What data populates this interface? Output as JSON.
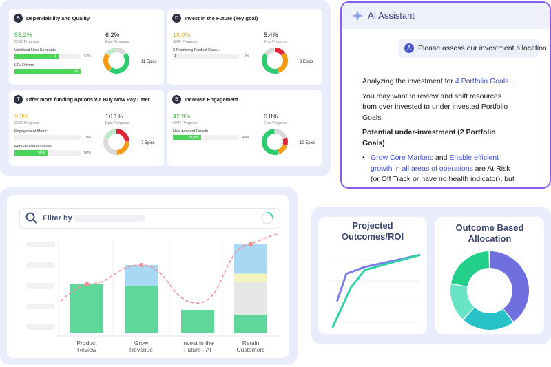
{
  "okr_cards": [
    {
      "badge": "B",
      "title": "Dependability and Quality",
      "okr_value": "55.2%",
      "okr_label": "OKR Progress",
      "okr_color": "#43b649",
      "epic_value": "6.2%",
      "epic_label": "Epic Progress",
      "epics": "11 Epics",
      "rows": [
        {
          "label": "Validated New Concepts",
          "bar_text": "1",
          "percent": 67,
          "percent_label": "67%"
        },
        {
          "label": "LTV Drivers",
          "bar_text": "79"
        }
      ],
      "donut": [
        {
          "value": 15,
          "color": "#d9d9d9"
        },
        {
          "value": 45,
          "color": "#2ecc71"
        },
        {
          "value": 25,
          "color": "#f39c12"
        },
        {
          "value": 15,
          "color": "#bfe8c9"
        }
      ]
    },
    {
      "badge": "D",
      "title": "Invest in the Future (key goal)",
      "okr_value": "18.0%",
      "okr_label": "OKR Progress",
      "okr_color": "#e6b422",
      "epic_value": "5.4%",
      "epic_label": "Epic Progress",
      "epics": "8 Epics",
      "rows": [
        {
          "label": "2 Promising Product Conc...",
          "bar_text": "1",
          "percent": 0,
          "percent_label": "0%"
        }
      ],
      "donut": [
        {
          "value": 15,
          "color": "#e0243a"
        },
        {
          "value": 30,
          "color": "#f39c12"
        },
        {
          "value": 40,
          "color": "#2ecc71"
        },
        {
          "value": 15,
          "color": "#d9d9d9"
        }
      ]
    },
    {
      "badge": "T",
      "title": "Offer more funding options via Buy Now Pay Later",
      "okr_value": "9.3%",
      "okr_label": "OKR Progress",
      "okr_color": "#e6b422",
      "epic_value": "10.1%",
      "epic_label": "Epic Progress",
      "epics": "7 Epics",
      "rows": [
        {
          "label": "Engagement Metric",
          "percent": 0,
          "percent_label": "0%"
        },
        {
          "label": "Reduce Fraud Losses",
          "bar_text": "98%",
          "percent": 50,
          "percent_label": "50%"
        }
      ],
      "donut": [
        {
          "value": 25,
          "color": "#e0243a"
        },
        {
          "value": 25,
          "color": "#f39c12"
        },
        {
          "value": 30,
          "color": "#d9d9d9"
        },
        {
          "value": 20,
          "color": "#bfe8c9"
        }
      ]
    },
    {
      "badge": "B",
      "title": "Increase Engagement",
      "okr_value": "42.9%",
      "okr_label": "OKR Progress",
      "okr_color": "#43b649",
      "epic_value": "0.0%",
      "epic_label": "Epic Progress",
      "epics": "10 Epics",
      "rows": [
        {
          "label": "New Account Growth",
          "bar_text": "30,000",
          "percent": 43,
          "percent_label": "43%"
        }
      ],
      "donut": [
        {
          "value": 20,
          "color": "#d9d9d9"
        },
        {
          "value": 10,
          "color": "#e0243a"
        },
        {
          "value": 15,
          "color": "#f39c12"
        },
        {
          "value": 55,
          "color": "#2ecc71"
        }
      ]
    }
  ],
  "assistant": {
    "title": "AI Assistant",
    "avatar": "A",
    "user_message": "Please assess our investment allocation",
    "intro": "Analyzing the investment for ",
    "intro_link": "4 Portfolio Goals",
    "intro_end": "...",
    "paragraph": "You may want to review and shift resources from over invested to under invested Portfolio Goals.",
    "heading": "Potential under-investment (2 Portfolio Goals)",
    "bullet_link_1": "Grow Core Markets",
    "bullet_join": " and ",
    "bullet_link_2": "Enable efficient growth in all areas of operations",
    "bullet_text": " are At Risk (or Off Track or have no health indicator), but have less planned than target allocation, which may impact their future progress. Recommend a review for more allocation."
  },
  "filter": {
    "label": "Filter by"
  },
  "chart_data": [
    {
      "type": "bar",
      "categories": [
        "Product Review",
        "Grow Revenue",
        "Invest in the Future - AI",
        "Retain Customers"
      ],
      "ylim": [
        0,
        100
      ],
      "series": [
        {
          "color": "#5fd79a",
          "values": [
            51,
            49,
            24,
            19
          ]
        },
        {
          "color": "#e6e6e6",
          "values": [
            null,
            null,
            null,
            34
          ]
        },
        {
          "color": "#f4f4c0",
          "values": [
            null,
            null,
            null,
            9
          ]
        },
        {
          "color": "#a9d8f5",
          "values": [
            null,
            22,
            null,
            31
          ]
        }
      ],
      "stack_order": [
        0,
        1,
        2,
        3
      ],
      "line": {
        "color": "#f0929a",
        "values": [
          51,
          71,
          31,
          93
        ]
      }
    },
    {
      "type": "line",
      "title": "Projected Outcomes/ROI",
      "xlim": [
        0,
        10
      ],
      "ylim": [
        0,
        10
      ],
      "series": [
        {
          "color": "#7d7ce6",
          "x": [
            1,
            2,
            4,
            10
          ],
          "values": [
            3.7,
            7.3,
            8.2,
            9.8
          ]
        },
        {
          "color": "#2fd3a5",
          "x": [
            0.5,
            2.5,
            4,
            10
          ],
          "values": [
            0.2,
            5.5,
            7.8,
            9.8
          ]
        }
      ]
    },
    {
      "type": "pie",
      "title": "Outcome Based Allocation",
      "values": [
        40,
        22,
        16,
        22
      ],
      "colors": [
        "#6f6fe0",
        "#27c3c9",
        "#69e3c6",
        "#22d08a"
      ]
    }
  ]
}
